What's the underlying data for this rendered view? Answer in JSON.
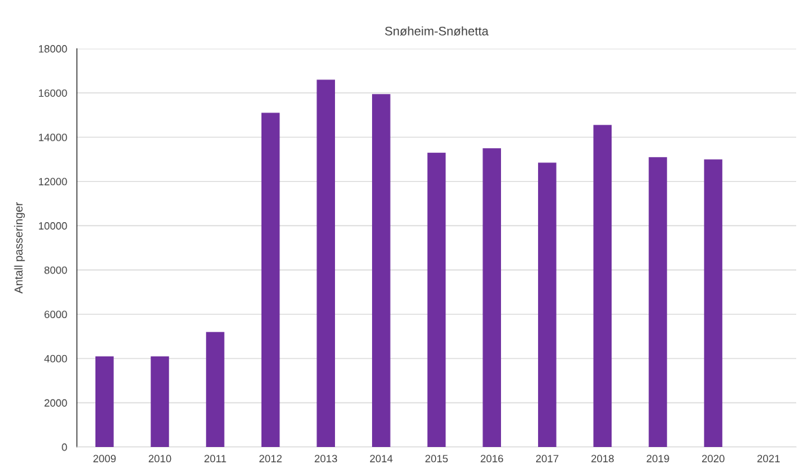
{
  "chart_data": {
    "type": "bar",
    "title": "Snøheim-Snøhetta",
    "ylabel": "Antall passeringer",
    "categories": [
      "2009",
      "2010",
      "2011",
      "2012",
      "2013",
      "2014",
      "2015",
      "2016",
      "2017",
      "2018",
      "2019",
      "2020",
      "2021"
    ],
    "values": [
      4100,
      4100,
      5200,
      15100,
      16600,
      15950,
      13300,
      13500,
      12850,
      14550,
      13100,
      13000,
      null
    ],
    "color": "#7030a0",
    "ylim": [
      0,
      18000
    ],
    "yticks": [
      0,
      2000,
      4000,
      6000,
      8000,
      10000,
      12000,
      14000,
      16000,
      18000
    ],
    "grid": "y"
  }
}
